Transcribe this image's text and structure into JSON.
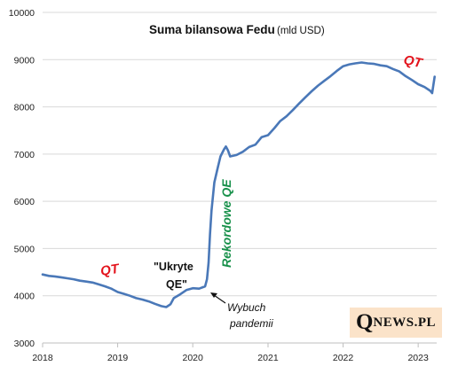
{
  "chart_data": {
    "type": "line",
    "title": "Suma bilansowa Fedu",
    "subtitle": "(mld USD)",
    "xlabel": "",
    "ylabel": "",
    "ylim": [
      3000,
      10000
    ],
    "xlim": [
      "2018-01-01",
      "2023-04-01"
    ],
    "y_ticks": [
      "3000",
      "4000",
      "5000",
      "6000",
      "7000",
      "8000",
      "9000",
      "10000"
    ],
    "x_ticks": [
      "2018",
      "2019",
      "2020",
      "2021",
      "2022",
      "2023"
    ],
    "grid": "horizontal",
    "legend": "none",
    "series": [
      {
        "color": "#4a78b8",
        "points": [
          [
            "2018-01-01",
            4450
          ],
          [
            "2018-02-01",
            4420
          ],
          [
            "2018-03-01",
            4410
          ],
          [
            "2018-04-01",
            4390
          ],
          [
            "2018-05-01",
            4370
          ],
          [
            "2018-06-01",
            4350
          ],
          [
            "2018-07-01",
            4320
          ],
          [
            "2018-08-01",
            4300
          ],
          [
            "2018-09-01",
            4280
          ],
          [
            "2018-10-01",
            4240
          ],
          [
            "2018-11-01",
            4200
          ],
          [
            "2018-12-01",
            4150
          ],
          [
            "2019-01-01",
            4080
          ],
          [
            "2019-02-01",
            4040
          ],
          [
            "2019-03-01",
            4000
          ],
          [
            "2019-04-01",
            3950
          ],
          [
            "2019-05-01",
            3920
          ],
          [
            "2019-06-01",
            3880
          ],
          [
            "2019-07-01",
            3830
          ],
          [
            "2019-08-01",
            3780
          ],
          [
            "2019-08-25",
            3760
          ],
          [
            "2019-09-15",
            3820
          ],
          [
            "2019-10-01",
            3950
          ],
          [
            "2019-11-01",
            4030
          ],
          [
            "2019-12-01",
            4120
          ],
          [
            "2020-01-01",
            4160
          ],
          [
            "2020-02-01",
            4150
          ],
          [
            "2020-03-01",
            4200
          ],
          [
            "2020-03-10",
            4350
          ],
          [
            "2020-03-18",
            4700
          ],
          [
            "2020-03-25",
            5300
          ],
          [
            "2020-04-01",
            5800
          ],
          [
            "2020-04-15",
            6400
          ],
          [
            "2020-05-01",
            6700
          ],
          [
            "2020-05-15",
            6950
          ],
          [
            "2020-06-01",
            7100
          ],
          [
            "2020-06-10",
            7160
          ],
          [
            "2020-06-20",
            7080
          ],
          [
            "2020-07-01",
            6950
          ],
          [
            "2020-08-01",
            6980
          ],
          [
            "2020-09-01",
            7050
          ],
          [
            "2020-10-01",
            7150
          ],
          [
            "2020-11-01",
            7200
          ],
          [
            "2020-12-01",
            7360
          ],
          [
            "2021-01-01",
            7400
          ],
          [
            "2021-02-01",
            7550
          ],
          [
            "2021-03-01",
            7700
          ],
          [
            "2021-04-01",
            7800
          ],
          [
            "2021-05-01",
            7930
          ],
          [
            "2021-06-01",
            8070
          ],
          [
            "2021-07-01",
            8200
          ],
          [
            "2021-08-01",
            8330
          ],
          [
            "2021-09-01",
            8450
          ],
          [
            "2021-10-01",
            8550
          ],
          [
            "2021-11-01",
            8650
          ],
          [
            "2021-12-01",
            8760
          ],
          [
            "2022-01-01",
            8860
          ],
          [
            "2022-02-01",
            8900
          ],
          [
            "2022-03-01",
            8920
          ],
          [
            "2022-04-01",
            8940
          ],
          [
            "2022-05-01",
            8920
          ],
          [
            "2022-06-01",
            8910
          ],
          [
            "2022-07-01",
            8880
          ],
          [
            "2022-08-01",
            8860
          ],
          [
            "2022-09-01",
            8800
          ],
          [
            "2022-10-01",
            8750
          ],
          [
            "2022-11-01",
            8650
          ],
          [
            "2022-12-01",
            8570
          ],
          [
            "2023-01-01",
            8480
          ],
          [
            "2023-02-01",
            8420
          ],
          [
            "2023-03-01",
            8340
          ],
          [
            "2023-03-10",
            8290
          ],
          [
            "2023-03-22",
            8640
          ]
        ]
      }
    ],
    "annotations": {
      "qt_left": "QT",
      "qt_right": "QT",
      "hidden_qe_line1": "\"Ukryte",
      "hidden_qe_line2": "QE\"",
      "record_qe": "Rekordowe QE",
      "pandemic_line1": "Wybuch",
      "pandemic_line2": "pandemii"
    }
  },
  "logo": {
    "big": "Q",
    "small": "NEWS.PL"
  }
}
